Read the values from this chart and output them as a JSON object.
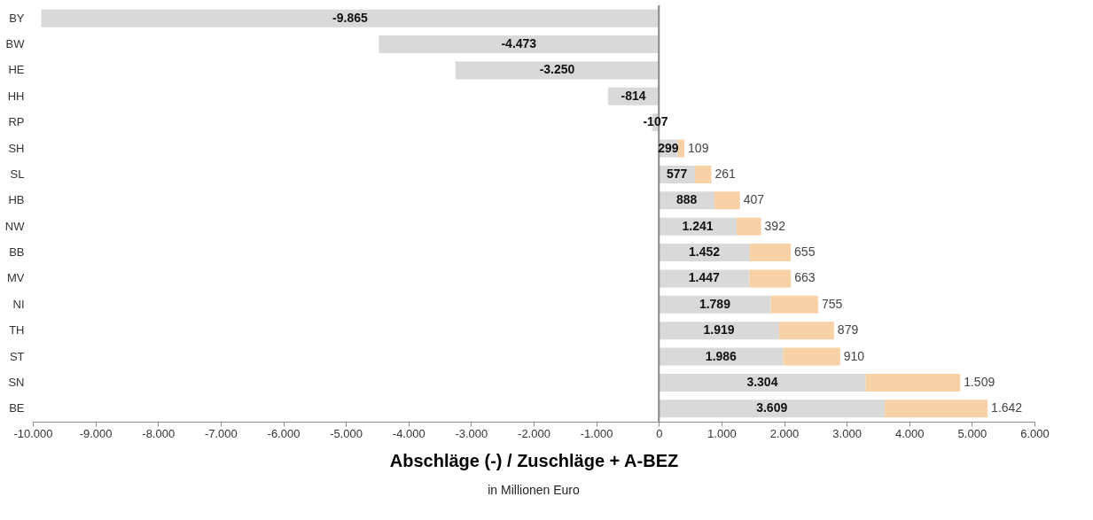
{
  "chart_data": {
    "type": "bar",
    "orientation": "horizontal",
    "stacked": true,
    "categories": [
      "BY",
      "BW",
      "HE",
      "HH",
      "RP",
      "SH",
      "SL",
      "HB",
      "NW",
      "BB",
      "MV",
      "NI",
      "TH",
      "ST",
      "SN",
      "BE"
    ],
    "series": [
      {
        "color": "#d9d9d9",
        "values": [
          -9865,
          -4473,
          -3250,
          -814,
          -107,
          299,
          577,
          888,
          1241,
          1452,
          1447,
          1789,
          1919,
          1986,
          3304,
          3609
        ],
        "value_labels": [
          "-9.865",
          "-4.473",
          "-3.250",
          "-814",
          "-107",
          "299",
          "577",
          "888",
          "1.241",
          "1.452",
          "1.447",
          "1.789",
          "1.919",
          "1.986",
          "3.304",
          "3.609"
        ]
      },
      {
        "color": "#f8d1a6",
        "values": [
          null,
          null,
          null,
          null,
          null,
          109,
          261,
          407,
          392,
          655,
          663,
          755,
          879,
          910,
          1509,
          1642
        ],
        "value_labels": [
          null,
          null,
          null,
          null,
          null,
          "109",
          "261",
          "407",
          "392",
          "655",
          "663",
          "755",
          "879",
          "910",
          "1.509",
          "1.642"
        ]
      }
    ],
    "xlim": [
      -10000,
      6000
    ],
    "xticks": [
      {
        "value": -10000,
        "label": "-10.000"
      },
      {
        "value": -9000,
        "label": "-9.000"
      },
      {
        "value": -8000,
        "label": "-8.000"
      },
      {
        "value": -7000,
        "label": "-7.000"
      },
      {
        "value": -6000,
        "label": "-6.000"
      },
      {
        "value": -5000,
        "label": "-5.000"
      },
      {
        "value": -4000,
        "label": "-4.000"
      },
      {
        "value": -3000,
        "label": "-3.000"
      },
      {
        "value": -2000,
        "label": "-2.000"
      },
      {
        "value": -1000,
        "label": "-1.000"
      },
      0,
      {
        "value": 1000,
        "label": "1.000"
      },
      {
        "value": 2000,
        "label": "2.000"
      },
      {
        "value": 3000,
        "label": "3.000"
      },
      {
        "value": 4000,
        "label": "4.000"
      },
      {
        "value": 5000,
        "label": "5.000"
      },
      {
        "value": 6000,
        "label": "6.000"
      }
    ],
    "xlabel": "Abschläge (-) / Zuschläge + A-BEZ",
    "annotations": [
      "in Millionen Euro"
    ]
  }
}
